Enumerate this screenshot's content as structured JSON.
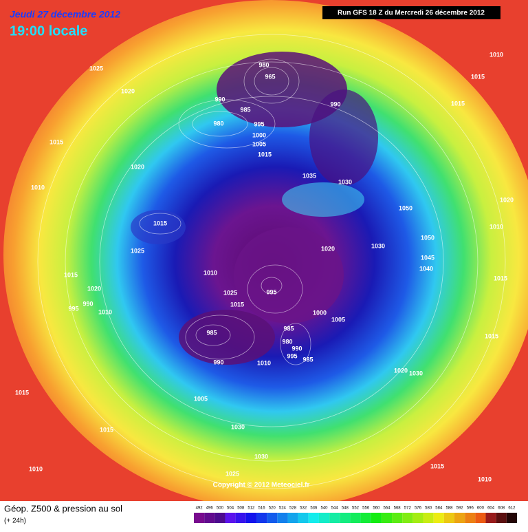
{
  "header": {
    "date": "Jeudi 27 décembre 2012",
    "time": "19:00 locale",
    "run": "Run GFS 18 Z du Mercredi 26 décembre 2012"
  },
  "map": {
    "isobar_labels": [
      1025,
      1020,
      1015,
      1020,
      1010,
      1015,
      1025,
      1015,
      1020,
      990,
      995,
      1010,
      1010,
      1025,
      1015,
      995,
      1000,
      1005,
      985,
      990,
      980,
      990,
      995,
      985,
      985,
      1010,
      1005,
      1030,
      1030,
      1025,
      1015,
      1015,
      1010,
      1015,
      1010,
      1020,
      1030,
      1015,
      1015,
      1040,
      1045,
      1050,
      1050,
      1030,
      1035,
      1020,
      1030,
      1020,
      1010,
      1015,
      1010,
      1015,
      990,
      965,
      980,
      980,
      990,
      985,
      995,
      1000,
      1005,
      1015
    ],
    "copyright": "Copyright © 2012 Meteociel.fr"
  },
  "footer": {
    "title": "Géop. Z500 & pression au sol",
    "lead_time": "(+ 24h)",
    "scale": [
      492,
      496,
      500,
      504,
      508,
      512,
      516,
      520,
      524,
      528,
      532,
      536,
      540,
      544,
      548,
      552,
      556,
      560,
      564,
      568,
      572,
      576,
      580,
      584,
      588,
      592,
      596,
      600,
      604,
      608,
      612
    ]
  }
}
